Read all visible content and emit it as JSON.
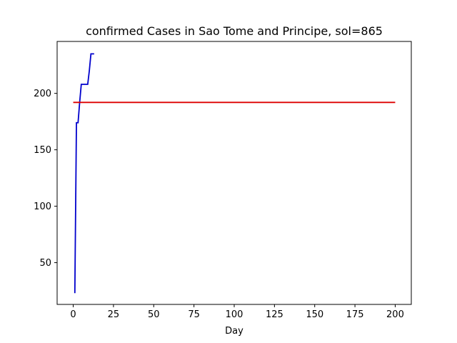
{
  "chart_data": {
    "type": "line",
    "title": "confirmed Cases in Sao Tome and Principe, sol=865",
    "xlabel": "Day",
    "ylabel": "",
    "xlim": [
      -10,
      210
    ],
    "ylim": [
      13,
      246
    ],
    "xticks": [
      0,
      25,
      50,
      75,
      100,
      125,
      150,
      175,
      200
    ],
    "yticks": [
      50,
      100,
      150,
      200
    ],
    "grid": false,
    "series": [
      {
        "color": "#0000cc",
        "x": [
          1,
          2,
          3,
          4,
          5,
          6,
          7,
          8,
          9,
          10,
          11,
          12,
          13
        ],
        "y": [
          23,
          174,
          174,
          192,
          208,
          208,
          208,
          208,
          208,
          220,
          235,
          235,
          235
        ]
      },
      {
        "color": "#dd0000",
        "x": [
          0,
          200
        ],
        "y": [
          192,
          192
        ]
      }
    ]
  }
}
